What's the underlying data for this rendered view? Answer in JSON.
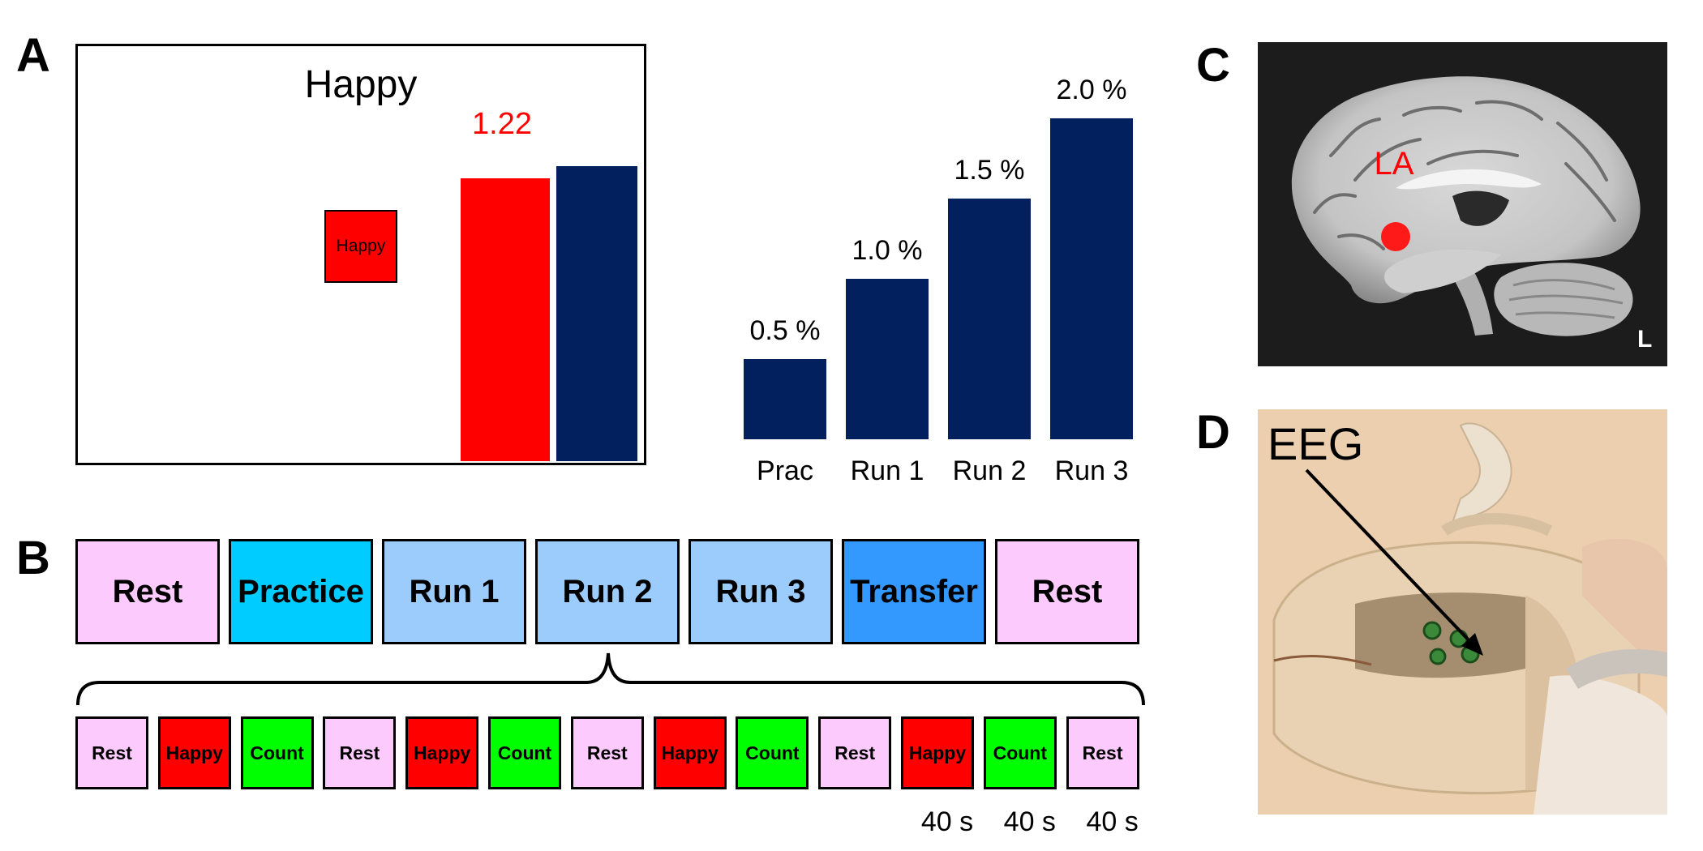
{
  "panels": {
    "a": "A",
    "b": "B",
    "c": "C",
    "d": "D"
  },
  "colors": {
    "navy": "#03205e",
    "red": "#ff0000",
    "pink": "#fccafc",
    "cyan": "#00ccff",
    "lightblue": "#9cccfc",
    "blue": "#3399ff",
    "green": "#00ff00"
  },
  "feedback_display": {
    "emotion_title": "Happy",
    "cue_label": "Happy",
    "value_label": "1.22",
    "current_bar_fraction": 0.96,
    "target_bar_fraction": 1.0
  },
  "chart_data": {
    "type": "bar",
    "categories": [
      "Prac",
      "Run 1",
      "Run 2",
      "Run 3"
    ],
    "values": [
      0.5,
      1.0,
      1.5,
      2.0
    ],
    "data_labels": [
      "0.5 %",
      "1.0 %",
      "1.5 %",
      "2.0 %"
    ],
    "title": "",
    "xlabel": "",
    "ylabel": "",
    "ylim": [
      0,
      2.0
    ]
  },
  "session": {
    "blocks": [
      "Rest",
      "Practice",
      "Run 1",
      "Run 2",
      "Run 3",
      "Transfer",
      "Rest"
    ],
    "run_blocks": [
      "Rest",
      "Happy",
      "Count",
      "Rest",
      "Happy",
      "Count",
      "Rest",
      "Happy",
      "Count",
      "Rest",
      "Happy",
      "Count",
      "Rest"
    ],
    "durations": [
      "40 s",
      "40 s",
      "40 s"
    ]
  },
  "mri": {
    "region_label": "LA",
    "orientation_label": "L"
  },
  "eeg": {
    "label": "EEG"
  }
}
